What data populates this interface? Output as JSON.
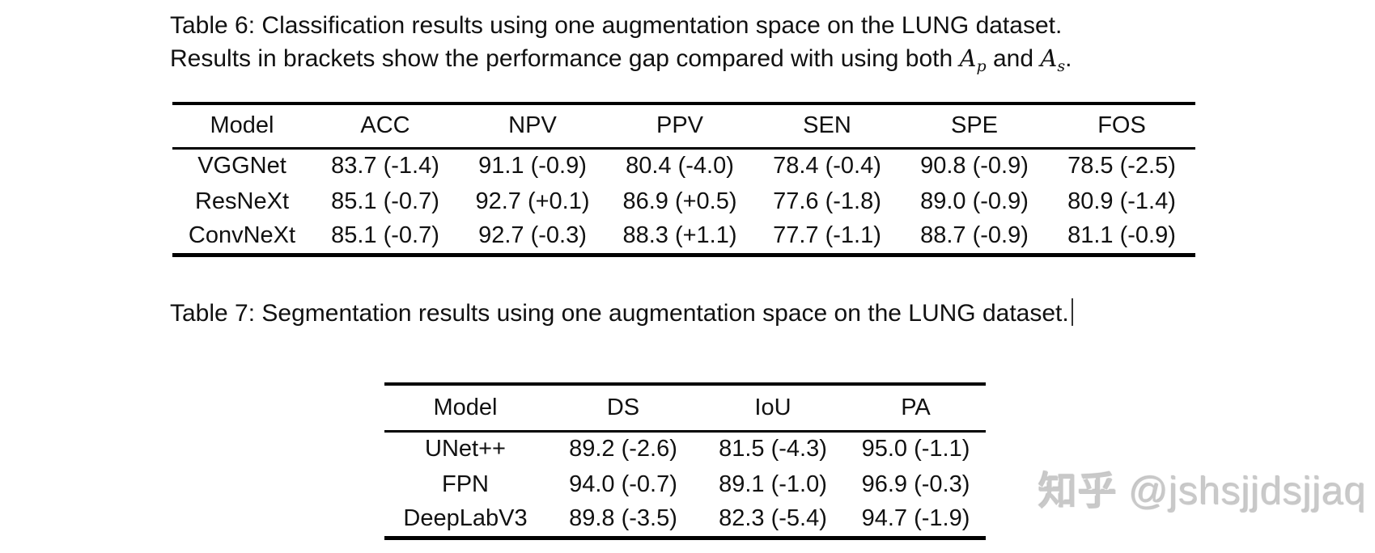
{
  "page": {
    "background": "#ffffff",
    "text_color": "#111111",
    "rule_color": "#000000"
  },
  "table6": {
    "caption": {
      "line1": "Table 6: Classification results using one augmentation space on the LUNG dataset.",
      "line2_text": "Results in brackets show the performance gap compared with using both",
      "math1_base": "A",
      "math1_sub": "p",
      "and_word": "and",
      "math2_base": "A",
      "math2_sub": "s",
      "end_punct": "."
    },
    "headers": [
      "Model",
      "ACC",
      "NPV",
      "PPV",
      "SEN",
      "SPE",
      "FOS"
    ],
    "rows": [
      {
        "model": "VGGNet",
        "cells": [
          "83.7 (-1.4)",
          "91.1 (-0.9)",
          "80.4 (-4.0)",
          "78.4 (-0.4)",
          "90.8 (-0.9)",
          "78.5 (-2.5)"
        ]
      },
      {
        "model": "ResNeXt",
        "cells": [
          "85.1 (-0.7)",
          "92.7 (+0.1)",
          "86.9 (+0.5)",
          "77.6 (-1.8)",
          "89.0 (-0.9)",
          "80.9 (-1.4)"
        ]
      },
      {
        "model": "ConvNeXt",
        "cells": [
          "85.1 (-0.7)",
          "92.7 (-0.3)",
          "88.3 (+1.1)",
          "77.7 (-1.1)",
          "88.7 (-0.9)",
          "81.1 (-0.9)"
        ]
      }
    ]
  },
  "table7": {
    "caption": "Table 7: Segmentation results using one augmentation space on the LUNG dataset.",
    "headers": [
      "Model",
      "DS",
      "IoU",
      "PA"
    ],
    "rows": [
      {
        "model": "UNet++",
        "cells": [
          "89.2 (-2.6)",
          "81.5 (-4.3)",
          "95.0 (-1.1)"
        ]
      },
      {
        "model": "FPN",
        "cells": [
          "94.0 (-0.7)",
          "89.1 (-1.0)",
          "96.9 (-0.3)"
        ]
      },
      {
        "model": "DeepLabV3",
        "cells": [
          "89.8 (-3.5)",
          "82.3 (-5.4)",
          "94.7 (-1.9)"
        ]
      }
    ]
  },
  "watermark": {
    "brand": "知乎",
    "user": "@jshsjjdsjjaq",
    "color": "#c9c9c9"
  }
}
